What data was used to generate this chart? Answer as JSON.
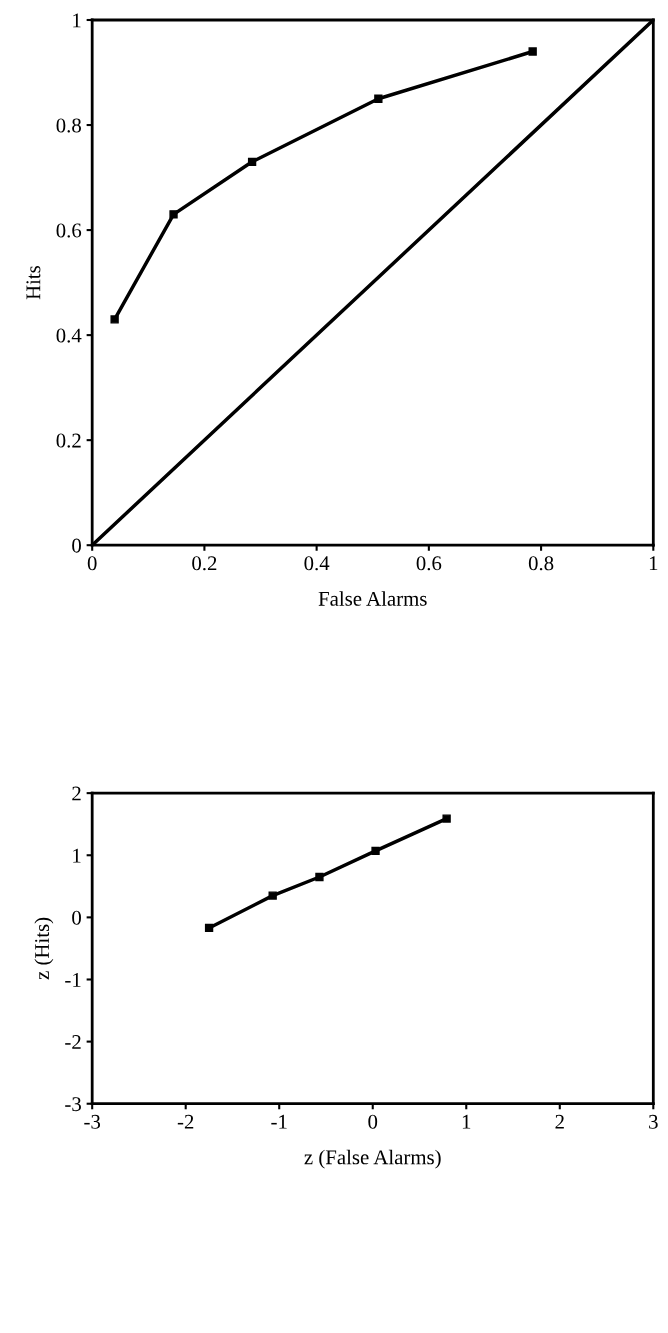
{
  "chart_data": [
    {
      "type": "line",
      "xlabel": "False Alarms",
      "ylabel": "Hits",
      "xlim": [
        0,
        1
      ],
      "ylim": [
        0,
        1
      ],
      "xticks": [
        0,
        0.2,
        0.4,
        0.6,
        0.8,
        1
      ],
      "yticks": [
        0,
        0.2,
        0.4,
        0.6,
        0.8,
        1
      ],
      "grid": false,
      "legend": false,
      "series": [
        {
          "color": "#000000",
          "marker": "square",
          "x": [
            0.04,
            0.145,
            0.285,
            0.51,
            0.785
          ],
          "values": [
            0.43,
            0.63,
            0.73,
            0.85,
            0.94
          ]
        },
        {
          "color": "#000000",
          "marker": "none",
          "x": [
            0,
            1
          ],
          "values": [
            0,
            1
          ]
        }
      ]
    },
    {
      "type": "line",
      "xlabel": "z (False Alarms)",
      "ylabel": "z (Hits)",
      "xlim": [
        -3,
        3
      ],
      "ylim": [
        -3,
        2
      ],
      "xticks": [
        -3,
        -2,
        -1,
        0,
        1,
        2,
        3
      ],
      "yticks": [
        -3,
        -2,
        -1,
        0,
        1,
        2
      ],
      "grid": false,
      "legend": false,
      "series": [
        {
          "color": "#000000",
          "marker": "square",
          "x": [
            -1.75,
            -1.07,
            -0.57,
            0.03,
            0.79
          ],
          "values": [
            -0.17,
            0.35,
            0.65,
            1.07,
            1.59
          ]
        }
      ]
    }
  ]
}
